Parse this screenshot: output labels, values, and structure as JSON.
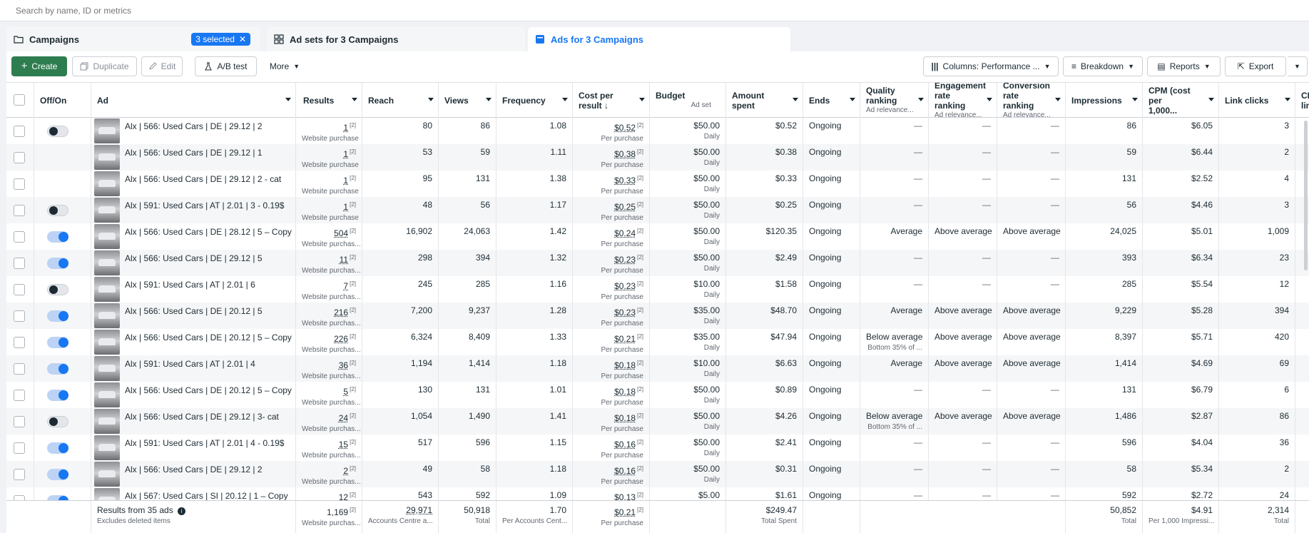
{
  "search": {
    "placeholder": "Search by name, ID or metrics"
  },
  "tabs": [
    {
      "label": "Campaigns",
      "badge": "3 selected"
    },
    {
      "label": "Ad sets for 3 Campaigns"
    },
    {
      "label": "Ads for 3 Campaigns"
    }
  ],
  "toolbar": {
    "create": "Create",
    "duplicate": "Duplicate",
    "edit": "Edit",
    "ab_test": "A/B test",
    "more": "More",
    "columns": "Columns: Performance ...",
    "breakdown": "Breakdown",
    "reports": "Reports",
    "export": "Export"
  },
  "columns": {
    "offon": "Off/On",
    "ad": "Ad",
    "results": "Results",
    "reach": "Reach",
    "views": "Views",
    "frequency": "Frequency",
    "cost_per_result": "Cost per",
    "cost_per_result_2": "result ↓",
    "budget": "Budget",
    "budget_sub": "Ad set",
    "amount_spent": "Amount spent",
    "ends": "Ends",
    "quality": "Quality",
    "quality_2": "ranking",
    "quality_sub": "Ad relevance...",
    "engagement": "Engagement",
    "engagement_2": "rate ranking",
    "engagement_sub": "Ad relevance...",
    "conversion": "Conversion",
    "conversion_2": "rate ranking",
    "conversion_sub": "Ad relevance...",
    "impressions": "Impressions",
    "cpm": "CPM (cost per",
    "cpm_2": "1,000...",
    "link_clicks": "Link clicks",
    "cpc": "CPC",
    "cpc_2": "link"
  },
  "rows": [
    {
      "toggle": "off",
      "name": "Alx | 566: Used Cars | DE | 29.12 | 2",
      "results": "1",
      "results_sub": "Website purchase",
      "reach": "80",
      "views": "86",
      "frequency": "1.08",
      "cpr": "$0.52",
      "cpr_sub": "Per purchase",
      "budget": "$50.00",
      "budget_sub": "Daily",
      "spent": "$0.52",
      "ends": "Ongoing",
      "quality": "—",
      "quality_sub": "",
      "engagement": "—",
      "conversion": "—",
      "impressions": "86",
      "cpm": "$6.05",
      "clicks": "3"
    },
    {
      "toggle": "none",
      "name": "Alx | 566: Used Cars | DE | 29.12 | 1",
      "results": "1",
      "results_sub": "Website purchase",
      "reach": "53",
      "views": "59",
      "frequency": "1.11",
      "cpr": "$0.38",
      "cpr_sub": "Per purchase",
      "budget": "$50.00",
      "budget_sub": "Daily",
      "spent": "$0.38",
      "ends": "Ongoing",
      "quality": "—",
      "quality_sub": "",
      "engagement": "—",
      "conversion": "—",
      "impressions": "59",
      "cpm": "$6.44",
      "clicks": "2"
    },
    {
      "toggle": "none",
      "name": "Alx | 566: Used Cars | DE | 29.12 | 2 - cat",
      "results": "1",
      "results_sub": "Website purchase",
      "reach": "95",
      "views": "131",
      "frequency": "1.38",
      "cpr": "$0.33",
      "cpr_sub": "Per purchase",
      "budget": "$50.00",
      "budget_sub": "Daily",
      "spent": "$0.33",
      "ends": "Ongoing",
      "quality": "—",
      "quality_sub": "",
      "engagement": "—",
      "conversion": "—",
      "impressions": "131",
      "cpm": "$2.52",
      "clicks": "4"
    },
    {
      "toggle": "off",
      "name": "Alx | 591: Used Cars | AT | 2.01 | 3 - 0.19$",
      "results": "1",
      "results_sub": "Website purchase",
      "reach": "48",
      "views": "56",
      "frequency": "1.17",
      "cpr": "$0.25",
      "cpr_sub": "Per purchase",
      "budget": "$50.00",
      "budget_sub": "Daily",
      "spent": "$0.25",
      "ends": "Ongoing",
      "quality": "—",
      "quality_sub": "",
      "engagement": "—",
      "conversion": "—",
      "impressions": "56",
      "cpm": "$4.46",
      "clicks": "3"
    },
    {
      "toggle": "on",
      "name": "Alx | 566: Used Cars | DE | 28.12 | 5 – Copy",
      "results": "504",
      "results_sub": "Website purchas...",
      "reach": "16,902",
      "views": "24,063",
      "frequency": "1.42",
      "cpr": "$0.24",
      "cpr_sub": "Per purchase",
      "budget": "$50.00",
      "budget_sub": "Daily",
      "spent": "$120.35",
      "ends": "Ongoing",
      "quality": "Average",
      "quality_sub": "",
      "engagement": "Above average",
      "conversion": "Above average",
      "impressions": "24,025",
      "cpm": "$5.01",
      "clicks": "1,009"
    },
    {
      "toggle": "on",
      "name": "Alx | 566: Used Cars | DE | 29.12 | 5",
      "results": "11",
      "results_sub": "Website purchas...",
      "reach": "298",
      "views": "394",
      "frequency": "1.32",
      "cpr": "$0.23",
      "cpr_sub": "Per purchase",
      "budget": "$50.00",
      "budget_sub": "Daily",
      "spent": "$2.49",
      "ends": "Ongoing",
      "quality": "—",
      "quality_sub": "",
      "engagement": "—",
      "conversion": "—",
      "impressions": "393",
      "cpm": "$6.34",
      "clicks": "23"
    },
    {
      "toggle": "off",
      "name": "Alx | 591: Used Cars | AT | 2.01 | 6",
      "results": "7",
      "results_sub": "Website purchas...",
      "reach": "245",
      "views": "285",
      "frequency": "1.16",
      "cpr": "$0.23",
      "cpr_sub": "Per purchase",
      "budget": "$10.00",
      "budget_sub": "Daily",
      "spent": "$1.58",
      "ends": "Ongoing",
      "quality": "—",
      "quality_sub": "",
      "engagement": "—",
      "conversion": "—",
      "impressions": "285",
      "cpm": "$5.54",
      "clicks": "12"
    },
    {
      "toggle": "on",
      "name": "Alx | 566: Used Cars | DE | 20.12 | 5",
      "results": "216",
      "results_sub": "Website purchas...",
      "reach": "7,200",
      "views": "9,237",
      "frequency": "1.28",
      "cpr": "$0.23",
      "cpr_sub": "Per purchase",
      "budget": "$35.00",
      "budget_sub": "Daily",
      "spent": "$48.70",
      "ends": "Ongoing",
      "quality": "Average",
      "quality_sub": "",
      "engagement": "Above average",
      "conversion": "Above average",
      "impressions": "9,229",
      "cpm": "$5.28",
      "clicks": "394"
    },
    {
      "toggle": "on",
      "name": "Alx | 566: Used Cars | DE | 20.12 | 5 – Copy",
      "results": "226",
      "results_sub": "Website purchas...",
      "reach": "6,324",
      "views": "8,409",
      "frequency": "1.33",
      "cpr": "$0.21",
      "cpr_sub": "Per purchase",
      "budget": "$35.00",
      "budget_sub": "Daily",
      "spent": "$47.94",
      "ends": "Ongoing",
      "quality": "Below average",
      "quality_sub": "Bottom 35% of ...",
      "engagement": "Above average",
      "conversion": "Above average",
      "impressions": "8,397",
      "cpm": "$5.71",
      "clicks": "420"
    },
    {
      "toggle": "on",
      "name": "Alx | 591: Used Cars | AT | 2.01 | 4",
      "results": "36",
      "results_sub": "Website purchas...",
      "reach": "1,194",
      "views": "1,414",
      "frequency": "1.18",
      "cpr": "$0.18",
      "cpr_sub": "Per purchase",
      "budget": "$10.00",
      "budget_sub": "Daily",
      "spent": "$6.63",
      "ends": "Ongoing",
      "quality": "Average",
      "quality_sub": "",
      "engagement": "Above average",
      "conversion": "Above average",
      "impressions": "1,414",
      "cpm": "$4.69",
      "clicks": "69"
    },
    {
      "toggle": "on",
      "name": "Alx | 566: Used Cars | DE | 20.12 | 5 – Copy",
      "results": "5",
      "results_sub": "Website purchas...",
      "reach": "130",
      "views": "131",
      "frequency": "1.01",
      "cpr": "$0.18",
      "cpr_sub": "Per purchase",
      "budget": "$50.00",
      "budget_sub": "Daily",
      "spent": "$0.89",
      "ends": "Ongoing",
      "quality": "—",
      "quality_sub": "",
      "engagement": "—",
      "conversion": "—",
      "impressions": "131",
      "cpm": "$6.79",
      "clicks": "6"
    },
    {
      "toggle": "off",
      "name": "Alx | 566: Used Cars | DE | 29.12 | 3- cat",
      "results": "24",
      "results_sub": "Website purchas...",
      "reach": "1,054",
      "views": "1,490",
      "frequency": "1.41",
      "cpr": "$0.18",
      "cpr_sub": "Per purchase",
      "budget": "$50.00",
      "budget_sub": "Daily",
      "spent": "$4.26",
      "ends": "Ongoing",
      "quality": "Below average",
      "quality_sub": "Bottom 35% of ...",
      "engagement": "Above average",
      "conversion": "Above average",
      "impressions": "1,486",
      "cpm": "$2.87",
      "clicks": "86"
    },
    {
      "toggle": "on",
      "name": "Alx | 591: Used Cars | AT | 2.01 | 4 - 0.19$",
      "results": "15",
      "results_sub": "Website purchas...",
      "reach": "517",
      "views": "596",
      "frequency": "1.15",
      "cpr": "$0.16",
      "cpr_sub": "Per purchase",
      "budget": "$50.00",
      "budget_sub": "Daily",
      "spent": "$2.41",
      "ends": "Ongoing",
      "quality": "—",
      "quality_sub": "",
      "engagement": "—",
      "conversion": "—",
      "impressions": "596",
      "cpm": "$4.04",
      "clicks": "36"
    },
    {
      "toggle": "on",
      "name": "Alx | 566: Used Cars | DE | 29.12 | 2",
      "results": "2",
      "results_sub": "Website purchas...",
      "reach": "49",
      "views": "58",
      "frequency": "1.18",
      "cpr": "$0.16",
      "cpr_sub": "Per purchase",
      "budget": "$50.00",
      "budget_sub": "Daily",
      "spent": "$0.31",
      "ends": "Ongoing",
      "quality": "—",
      "quality_sub": "",
      "engagement": "—",
      "conversion": "—",
      "impressions": "58",
      "cpm": "$5.34",
      "clicks": "2"
    },
    {
      "toggle": "on",
      "name": "Alx | 567: Used Cars | SI | 20.12 | 1 – Copy",
      "results": "12",
      "results_sub": "",
      "reach": "543",
      "views": "592",
      "frequency": "1.09",
      "cpr": "$0.13",
      "cpr_sub": "",
      "budget": "$5.00",
      "budget_sub": "",
      "spent": "$1.61",
      "ends": "Ongoing",
      "quality": "—",
      "quality_sub": "",
      "engagement": "—",
      "conversion": "—",
      "impressions": "592",
      "cpm": "$2.72",
      "clicks": "24"
    }
  ],
  "footer": {
    "label": "Results from 35 ads",
    "label_sub": "Excludes deleted items",
    "results": "1,169",
    "results_sub": "Website purchas...",
    "reach": "29,971",
    "reach_sub": "Accounts Centre a...",
    "views": "50,918",
    "views_sub": "Total",
    "frequency": "1.70",
    "frequency_sub": "Per Accounts Cent...",
    "cpr": "$0.21",
    "cpr_sub": "Per purchase",
    "spent": "$249.47",
    "spent_sub": "Total Spent",
    "impressions": "50,852",
    "impressions_sub": "Total",
    "cpm": "$4.91",
    "cpm_sub": "Per 1,000 Impressi...",
    "clicks": "2,314",
    "clicks_sub": "Total"
  },
  "colors": {
    "accent": "#1877f2",
    "create_green": "#2e7d4f"
  }
}
